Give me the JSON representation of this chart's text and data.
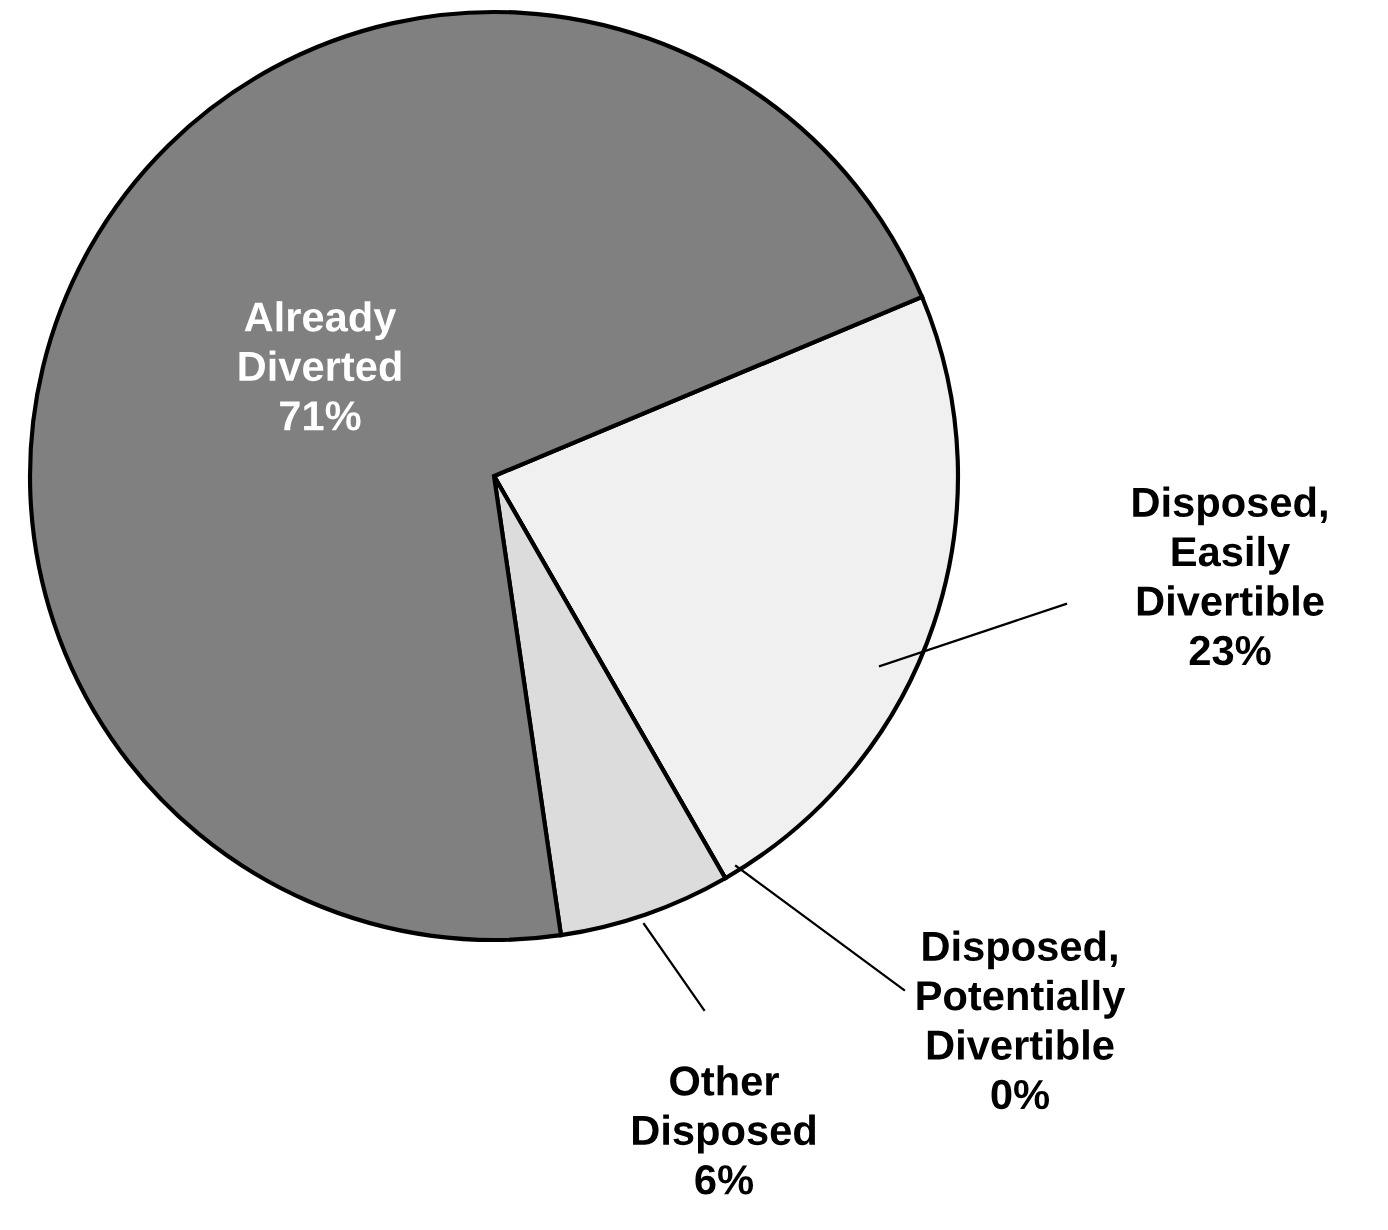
{
  "chart_data": {
    "type": "pie",
    "categories": [
      "Disposed,\nEasily\nDivertible",
      "Disposed,\nPotentially\nDivertible",
      "Other\nDisposed",
      "Already\nDiverted"
    ],
    "values": [
      23,
      0,
      6,
      71
    ],
    "value_labels": [
      "23%",
      "0%",
      "6%",
      "71%"
    ],
    "colors": [
      "#f0f0f0",
      "#202020",
      "#dcdcdc",
      "#808080"
    ],
    "legend": false
  }
}
